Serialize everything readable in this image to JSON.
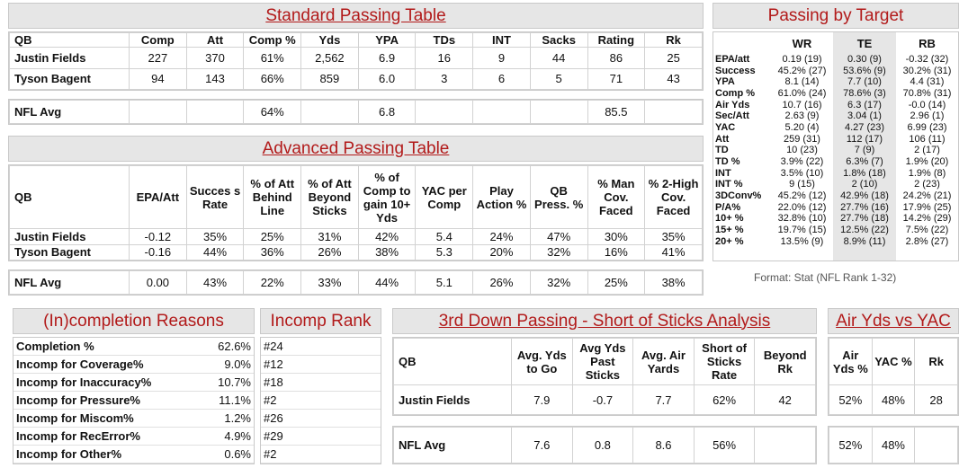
{
  "standard": {
    "title": "Standard Passing Table",
    "headers": [
      "QB",
      "Comp",
      "Att",
      "Comp %",
      "Yds",
      "YPA",
      "TDs",
      "INT",
      "Sacks",
      "Rating",
      "Rk"
    ],
    "rows": [
      [
        "Justin Fields",
        "227",
        "370",
        "61%",
        "2,562",
        "6.9",
        "16",
        "9",
        "44",
        "86",
        "25"
      ],
      [
        "Tyson Bagent",
        "94",
        "143",
        "66%",
        "859",
        "6.0",
        "3",
        "6",
        "5",
        "71",
        "43"
      ]
    ],
    "avg": [
      "NFL Avg",
      "",
      "",
      "64%",
      "",
      "6.8",
      "",
      "",
      "",
      "85.5",
      ""
    ]
  },
  "advanced": {
    "title": "Advanced Passing Table",
    "headers": [
      "QB",
      "EPA/Att",
      "Succes s Rate",
      "% of Att Behind Line",
      "% of Att Beyond Sticks",
      "% of Comp to gain 10+ Yds",
      "YAC per Comp",
      "Play Action %",
      "QB Press. %",
      "% Man Cov. Faced",
      "% 2-High Cov. Faced"
    ],
    "rows": [
      [
        "Justin Fields",
        "-0.12",
        "35%",
        "25%",
        "31%",
        "42%",
        "5.4",
        "24%",
        "47%",
        "30%",
        "35%"
      ],
      [
        "Tyson Bagent",
        "-0.16",
        "44%",
        "36%",
        "26%",
        "38%",
        "5.3",
        "20%",
        "32%",
        "16%",
        "41%"
      ]
    ],
    "avg": [
      "NFL Avg",
      "0.00",
      "43%",
      "22%",
      "33%",
      "44%",
      "5.1",
      "26%",
      "32%",
      "25%",
      "38%"
    ]
  },
  "target": {
    "title": "Passing by Target",
    "headers": [
      "",
      "WR",
      "TE",
      "RB"
    ],
    "rows": [
      [
        "EPA/att",
        "0.19 (19)",
        "0.30 (9)",
        "-0.32 (32)"
      ],
      [
        "Success",
        "45.2% (27)",
        "53.6% (9)",
        "30.2% (31)"
      ],
      [
        "YPA",
        "8.1 (14)",
        "7.7 (10)",
        "4.4 (31)"
      ],
      [
        "Comp %",
        "61.0% (24)",
        "78.6% (3)",
        "70.8% (31)"
      ],
      [
        "Air Yds",
        "10.7 (16)",
        "6.3 (17)",
        "-0.0 (14)"
      ],
      [
        "Sec/Att",
        "2.63 (9)",
        "3.04 (1)",
        "2.96 (1)"
      ],
      [
        "YAC",
        "5.20 (4)",
        "4.27 (23)",
        "6.99 (23)"
      ],
      [
        "Att",
        "259 (31)",
        "112 (17)",
        "106 (11)"
      ],
      [
        "TD",
        "10 (23)",
        "7 (9)",
        "2 (17)"
      ],
      [
        "TD %",
        "3.9% (22)",
        "6.3% (7)",
        "1.9% (20)"
      ],
      [
        "INT",
        "3.5% (10)",
        "1.8% (18)",
        "1.9% (8)"
      ],
      [
        "INT %",
        "9 (15)",
        "2 (10)",
        "2 (23)"
      ],
      [
        "3DConv%",
        "45.2% (12)",
        "42.9% (18)",
        "24.2% (21)"
      ],
      [
        "P/A%",
        "22.0% (12)",
        "27.7% (16)",
        "17.9% (25)"
      ],
      [
        "10+ %",
        "32.8% (10)",
        "27.7% (18)",
        "14.2% (29)"
      ],
      [
        "15+ %",
        "19.7% (15)",
        "12.5% (22)",
        "7.5% (22)"
      ],
      [
        "20+ %",
        "13.5% (9)",
        "8.9% (11)",
        "2.8% (27)"
      ]
    ],
    "format_note": "Format: Stat (NFL Rank 1-32)"
  },
  "incompletion": {
    "title": "(In)completion Reasons",
    "rank_title": "Incomp Rank",
    "rows": [
      [
        "Completion %",
        "62.6%",
        "#24"
      ],
      [
        "Incomp for Coverage%",
        "9.0%",
        "#12"
      ],
      [
        "Incomp for Inaccuracy%",
        "10.7%",
        "#18"
      ],
      [
        "Incomp for Pressure%",
        "11.1%",
        "#2"
      ],
      [
        "Incomp for Miscom%",
        "1.2%",
        "#26"
      ],
      [
        "Incomp for RecError%",
        "4.9%",
        "#29"
      ],
      [
        "Incomp for Other%",
        "0.6%",
        "#2"
      ]
    ]
  },
  "third_down": {
    "title": "3rd Down Passing - Short of Sticks Analysis",
    "headers": [
      "QB",
      "Avg. Yds to Go",
      "Avg Yds Past Sticks",
      "Avg. Air Yards",
      "Short of Sticks Rate",
      "Beyond Rk"
    ],
    "row": [
      "Justin Fields",
      "7.9",
      "-0.7",
      "7.7",
      "62%",
      "42"
    ],
    "avg": [
      "NFL Avg",
      "7.6",
      "0.8",
      "8.6",
      "56%",
      ""
    ]
  },
  "air_yac": {
    "title": "Air Yds vs YAC",
    "headers": [
      "Air Yds %",
      "YAC %",
      "Rk"
    ],
    "row": [
      "52%",
      "48%",
      "28"
    ],
    "avg": [
      "52%",
      "48%",
      ""
    ]
  }
}
